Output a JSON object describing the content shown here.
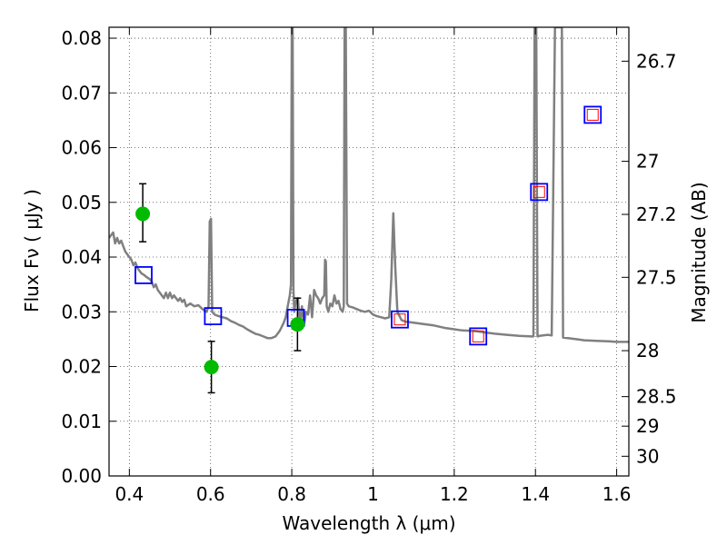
{
  "chart_data": {
    "type": "scatter",
    "xlabel": "Wavelength  λ (μm)",
    "ylabel": "Flux  Fν  ( μJy )",
    "y2label": "Magnitude (AB)",
    "xlim": [
      0.35,
      1.63
    ],
    "ylim": [
      0.0,
      0.082
    ],
    "x_ticks": [
      0.4,
      0.6,
      0.8,
      1.0,
      1.2,
      1.4,
      1.6
    ],
    "x_tick_labels": [
      "0.4",
      "0.6",
      "0.8",
      "1",
      "1.2",
      "1.4",
      "1.6"
    ],
    "y_ticks": [
      0.0,
      0.01,
      0.02,
      0.03,
      0.04,
      0.05,
      0.06,
      0.07,
      0.08
    ],
    "y_tick_labels": [
      "0.00",
      "0.01",
      "0.02",
      "0.03",
      "0.04",
      "0.05",
      "0.06",
      "0.07",
      "0.08"
    ],
    "y2_ticks": [
      {
        "label": "26.7",
        "flux": 0.0758
      },
      {
        "label": "27",
        "flux": 0.0575
      },
      {
        "label": "27.2",
        "flux": 0.0478
      },
      {
        "label": "27.5",
        "flux": 0.0363
      },
      {
        "label": "28",
        "flux": 0.0229
      },
      {
        "label": "28.5",
        "flux": 0.0145
      },
      {
        "label": "29",
        "flux": 0.0091
      },
      {
        "label": "30",
        "flux": 0.0036
      }
    ],
    "grid": true,
    "series": [
      {
        "kind": "model_spectrum",
        "color": "#808080",
        "points": [
          [
            0.35,
            0.0435
          ],
          [
            0.36,
            0.0445
          ],
          [
            0.365,
            0.0425
          ],
          [
            0.37,
            0.0435
          ],
          [
            0.375,
            0.0425
          ],
          [
            0.38,
            0.043
          ],
          [
            0.385,
            0.042
          ],
          [
            0.39,
            0.041
          ],
          [
            0.395,
            0.0405
          ],
          [
            0.4,
            0.04
          ],
          [
            0.405,
            0.0395
          ],
          [
            0.41,
            0.0385
          ],
          [
            0.415,
            0.039
          ],
          [
            0.42,
            0.038
          ],
          [
            0.425,
            0.0375
          ],
          [
            0.43,
            0.037
          ],
          [
            0.435,
            0.0368
          ],
          [
            0.44,
            0.0365
          ],
          [
            0.445,
            0.0362
          ],
          [
            0.45,
            0.036
          ],
          [
            0.455,
            0.0355
          ],
          [
            0.46,
            0.0345
          ],
          [
            0.465,
            0.035
          ],
          [
            0.47,
            0.034
          ],
          [
            0.475,
            0.0335
          ],
          [
            0.48,
            0.033
          ],
          [
            0.485,
            0.0325
          ],
          [
            0.49,
            0.0335
          ],
          [
            0.495,
            0.0325
          ],
          [
            0.5,
            0.0335
          ],
          [
            0.505,
            0.0325
          ],
          [
            0.51,
            0.033
          ],
          [
            0.515,
            0.0325
          ],
          [
            0.52,
            0.032
          ],
          [
            0.525,
            0.0325
          ],
          [
            0.53,
            0.0318
          ],
          [
            0.535,
            0.0322
          ],
          [
            0.54,
            0.031
          ],
          [
            0.55,
            0.0315
          ],
          [
            0.56,
            0.031
          ],
          [
            0.57,
            0.0312
          ],
          [
            0.58,
            0.0305
          ],
          [
            0.59,
            0.03
          ],
          [
            0.595,
            0.031
          ],
          [
            0.598,
            0.0465
          ],
          [
            0.601,
            0.047
          ],
          [
            0.604,
            0.03
          ],
          [
            0.61,
            0.0295
          ],
          [
            0.62,
            0.0292
          ],
          [
            0.63,
            0.029
          ],
          [
            0.64,
            0.0288
          ],
          [
            0.65,
            0.0283
          ],
          [
            0.66,
            0.028
          ],
          [
            0.67,
            0.0276
          ],
          [
            0.68,
            0.0273
          ],
          [
            0.69,
            0.0268
          ],
          [
            0.7,
            0.0264
          ],
          [
            0.71,
            0.026
          ],
          [
            0.72,
            0.0258
          ],
          [
            0.73,
            0.0255
          ],
          [
            0.74,
            0.0252
          ],
          [
            0.75,
            0.0252
          ],
          [
            0.76,
            0.0255
          ],
          [
            0.765,
            0.026
          ],
          [
            0.77,
            0.0265
          ],
          [
            0.775,
            0.0272
          ],
          [
            0.78,
            0.028
          ],
          [
            0.785,
            0.029
          ],
          [
            0.79,
            0.031
          ],
          [
            0.795,
            0.033
          ],
          [
            0.798,
            0.035
          ],
          [
            0.8,
            0.082
          ],
          [
            0.802,
            0.082
          ],
          [
            0.804,
            0.034
          ],
          [
            0.806,
            0.03
          ],
          [
            0.81,
            0.032
          ],
          [
            0.815,
            0.0325
          ],
          [
            0.82,
            0.028
          ],
          [
            0.825,
            0.031
          ],
          [
            0.83,
            0.0275
          ],
          [
            0.835,
            0.03
          ],
          [
            0.84,
            0.0295
          ],
          [
            0.845,
            0.033
          ],
          [
            0.85,
            0.029
          ],
          [
            0.855,
            0.034
          ],
          [
            0.86,
            0.033
          ],
          [
            0.865,
            0.0325
          ],
          [
            0.87,
            0.0315
          ],
          [
            0.875,
            0.0325
          ],
          [
            0.88,
            0.033
          ],
          [
            0.882,
            0.0395
          ],
          [
            0.884,
            0.0392
          ],
          [
            0.886,
            0.031
          ],
          [
            0.89,
            0.03
          ],
          [
            0.895,
            0.0315
          ],
          [
            0.9,
            0.031
          ],
          [
            0.905,
            0.033
          ],
          [
            0.91,
            0.0315
          ],
          [
            0.915,
            0.032
          ],
          [
            0.92,
            0.0305
          ],
          [
            0.925,
            0.03
          ],
          [
            0.928,
            0.031
          ],
          [
            0.93,
            0.082
          ],
          [
            0.933,
            0.082
          ],
          [
            0.936,
            0.0315
          ],
          [
            0.94,
            0.031
          ],
          [
            0.95,
            0.0308
          ],
          [
            0.96,
            0.0305
          ],
          [
            0.97,
            0.0302
          ],
          [
            0.98,
            0.03
          ],
          [
            0.99,
            0.0302
          ],
          [
            1.0,
            0.0295
          ],
          [
            1.01,
            0.0292
          ],
          [
            1.02,
            0.029
          ],
          [
            1.03,
            0.0288
          ],
          [
            1.04,
            0.029
          ],
          [
            1.045,
            0.036
          ],
          [
            1.05,
            0.048
          ],
          [
            1.055,
            0.038
          ],
          [
            1.06,
            0.03
          ],
          [
            1.07,
            0.0285
          ],
          [
            1.08,
            0.0282
          ],
          [
            1.1,
            0.028
          ],
          [
            1.12,
            0.0278
          ],
          [
            1.15,
            0.0275
          ],
          [
            1.18,
            0.027
          ],
          [
            1.2,
            0.0268
          ],
          [
            1.22,
            0.0266
          ],
          [
            1.25,
            0.0265
          ],
          [
            1.28,
            0.0262
          ],
          [
            1.3,
            0.026
          ],
          [
            1.33,
            0.0258
          ],
          [
            1.36,
            0.0256
          ],
          [
            1.39,
            0.0255
          ],
          [
            1.395,
            0.0255
          ],
          [
            1.398,
            0.082
          ],
          [
            1.402,
            0.082
          ],
          [
            1.405,
            0.0255
          ],
          [
            1.41,
            0.0256
          ],
          [
            1.43,
            0.0258
          ],
          [
            1.44,
            0.0257
          ],
          [
            1.448,
            0.082
          ],
          [
            1.465,
            0.082
          ],
          [
            1.468,
            0.0253
          ],
          [
            1.48,
            0.0252
          ],
          [
            1.5,
            0.025
          ],
          [
            1.52,
            0.0248
          ],
          [
            1.55,
            0.0247
          ],
          [
            1.58,
            0.0246
          ],
          [
            1.6,
            0.0245
          ],
          [
            1.63,
            0.0245
          ]
        ]
      },
      {
        "kind": "observed",
        "color": "#00bb00",
        "points": [
          {
            "x": 0.433,
            "y": 0.0479,
            "yerr_low": 0.0051,
            "yerr_high": 0.0055
          },
          {
            "x": 0.602,
            "y": 0.0199,
            "yerr_low": 0.0047,
            "yerr_high": 0.0047
          },
          {
            "x": 0.814,
            "y": 0.0277,
            "yerr_low": 0.0048,
            "yerr_high": 0.0048
          }
        ]
      },
      {
        "kind": "model_band",
        "color": "#0000ff",
        "points": [
          {
            "x": 0.435,
            "y": 0.0367
          },
          {
            "x": 0.606,
            "y": 0.0292
          },
          {
            "x": 0.81,
            "y": 0.0289
          },
          {
            "x": 1.066,
            "y": 0.0286
          },
          {
            "x": 1.259,
            "y": 0.0255
          },
          {
            "x": 1.409,
            "y": 0.0519
          },
          {
            "x": 1.541,
            "y": 0.066
          }
        ]
      },
      {
        "kind": "model_band_nir",
        "color": "#ff0000",
        "points": [
          {
            "x": 1.066,
            "y": 0.0286
          },
          {
            "x": 1.259,
            "y": 0.0255
          },
          {
            "x": 1.409,
            "y": 0.0519
          },
          {
            "x": 1.541,
            "y": 0.066
          }
        ]
      }
    ]
  }
}
